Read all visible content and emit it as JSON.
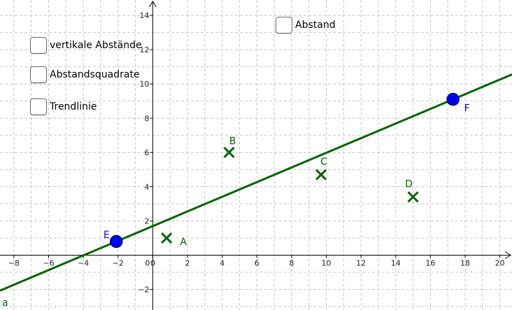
{
  "checkboxes": [
    {
      "label": "vertikale Abstände",
      "checked": false
    },
    {
      "label": "Abstandsquadrate",
      "checked": false
    },
    {
      "label": "Trendlinie",
      "checked": false
    },
    {
      "label": "Abstand",
      "checked": false
    }
  ],
  "axes": {
    "x_range": [
      -8.8,
      20.7
    ],
    "y_range": [
      -3.2,
      14.9
    ],
    "x_ticks": [
      -8,
      -6,
      -4,
      -2,
      0,
      2,
      4,
      6,
      8,
      10,
      12,
      14,
      16,
      18,
      20
    ],
    "y_ticks": [
      -2,
      2,
      4,
      6,
      8,
      10,
      12,
      14
    ],
    "grid_step": 1
  },
  "points": [
    {
      "label": "A",
      "x": 0.8,
      "y": 1.0,
      "style": "cross",
      "color": "#006400"
    },
    {
      "label": "B",
      "x": 4.4,
      "y": 6.0,
      "style": "cross",
      "color": "#006400"
    },
    {
      "label": "C",
      "x": 9.7,
      "y": 4.7,
      "style": "cross",
      "color": "#006400"
    },
    {
      "label": "D",
      "x": 15.0,
      "y": 3.4,
      "style": "cross",
      "color": "#006400"
    },
    {
      "label": "E",
      "x": -2.1,
      "y": 0.8,
      "style": "circle",
      "color": "#0000ff"
    },
    {
      "label": "F",
      "x": 17.3,
      "y": 9.1,
      "style": "circle",
      "color": "#0000ff"
    }
  ],
  "line": {
    "label": "a",
    "through": [
      "E",
      "F"
    ],
    "color": "#006400"
  },
  "colors": {
    "grid": "#c8c8c8",
    "axis": "#000000",
    "line": "#006400",
    "cross": "#006400",
    "free_point": "#0000ff"
  }
}
